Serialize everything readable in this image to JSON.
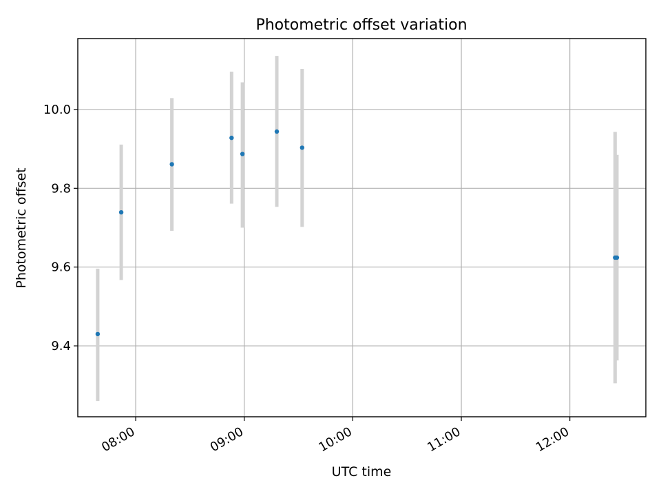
{
  "chart_data": {
    "type": "scatter",
    "title": "Photometric offset variation",
    "xlabel": "UTC time",
    "ylabel": "Photometric offset",
    "x_tick_labels": [
      "08:00",
      "09:00",
      "10:00",
      "11:00",
      "12:00"
    ],
    "y_tick_labels": [
      "9.4",
      "9.6",
      "9.8",
      "10.0"
    ],
    "xlim": [
      "07:28",
      "12:42"
    ],
    "ylim": [
      9.22,
      10.18
    ],
    "grid": true,
    "point_color": "#1f77b4",
    "errorbar_color": "#d3d3d3",
    "points": [
      {
        "x": "07:39",
        "y": 9.43,
        "ylow": 9.26,
        "yhigh": 9.596
      },
      {
        "x": "07:52",
        "y": 9.739,
        "ylow": 9.567,
        "yhigh": 9.911
      },
      {
        "x": "08:20",
        "y": 9.861,
        "ylow": 9.692,
        "yhigh": 10.029
      },
      {
        "x": "08:53",
        "y": 9.928,
        "ylow": 9.761,
        "yhigh": 10.096
      },
      {
        "x": "08:59",
        "y": 9.887,
        "ylow": 9.7,
        "yhigh": 10.069
      },
      {
        "x": "09:18",
        "y": 9.944,
        "ylow": 9.753,
        "yhigh": 10.136
      },
      {
        "x": "09:32",
        "y": 9.903,
        "ylow": 9.702,
        "yhigh": 10.103
      },
      {
        "x": "12:25",
        "y": 9.624,
        "ylow": 9.305,
        "yhigh": 9.943
      },
      {
        "x": "12:26",
        "y": 9.624,
        "ylow": 9.363,
        "yhigh": 9.885
      }
    ]
  }
}
